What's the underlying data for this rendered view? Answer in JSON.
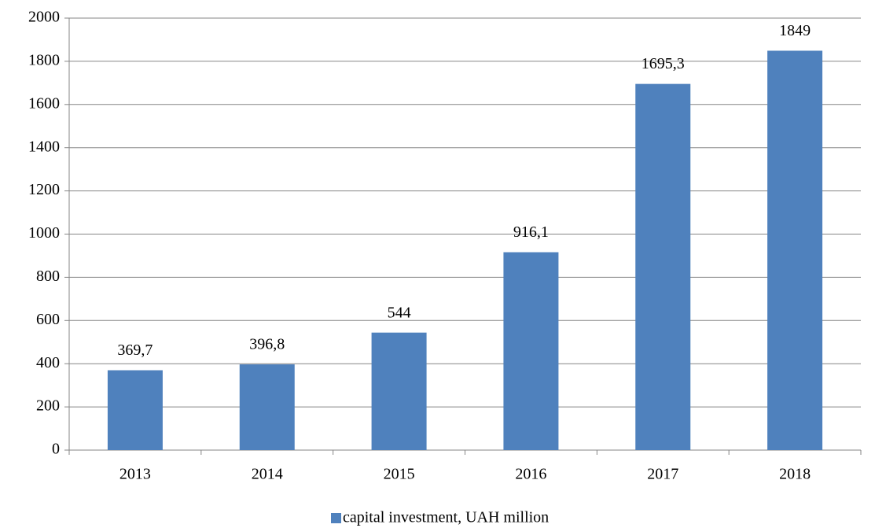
{
  "chart_data": {
    "type": "bar",
    "categories": [
      "2013",
      "2014",
      "2015",
      "2016",
      "2017",
      "2018"
    ],
    "series": [
      {
        "name": "capital investment, UAH million",
        "color": "#4f81bd",
        "values": [
          369.7,
          396.8,
          544,
          916.1,
          1695.3,
          1849
        ],
        "value_labels": [
          "369,7",
          "396,8",
          "544",
          "916,1",
          "1695,3",
          "1849"
        ]
      }
    ],
    "ylim": [
      0,
      2000
    ],
    "yticks": [
      0,
      200,
      400,
      600,
      800,
      1000,
      1200,
      1400,
      1600,
      1800,
      2000
    ],
    "grid": true,
    "legend": "bottom"
  }
}
